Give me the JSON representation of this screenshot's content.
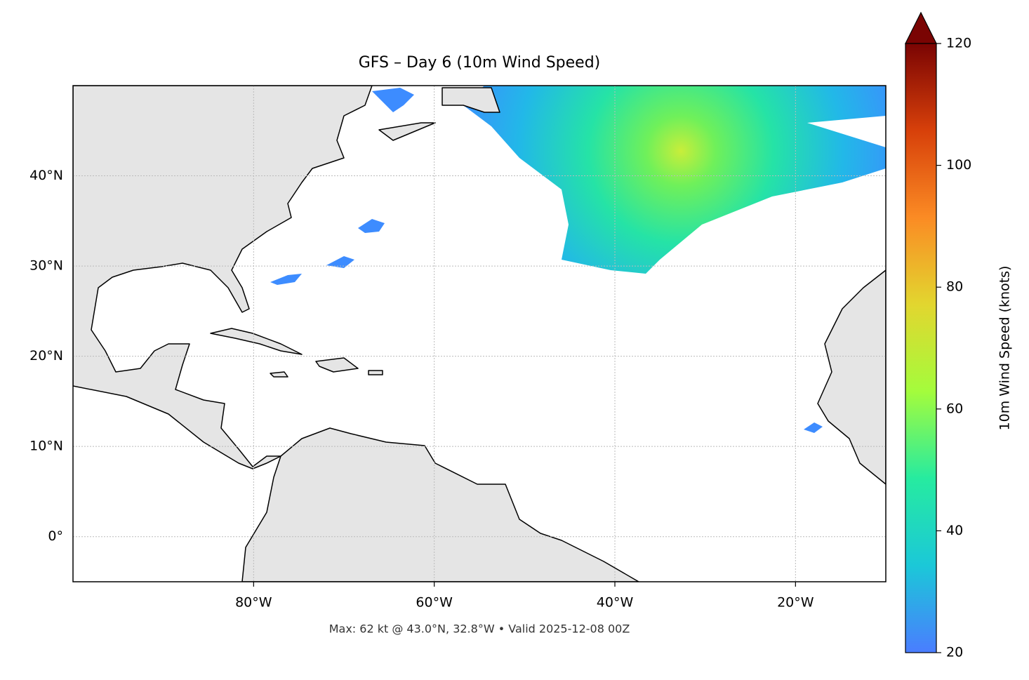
{
  "chart_data": {
    "type": "map",
    "title": "GFS – Day 6 (10m Wind Speed)",
    "annotation": "Max: 62 kt @ 43.0°N, 32.8°W • Valid 2025-12-08 00Z",
    "xlim": [
      -100,
      -10
    ],
    "ylim": [
      -5,
      50
    ],
    "xticks": [
      {
        "value": -80,
        "label": "80°W"
      },
      {
        "value": -60,
        "label": "60°W"
      },
      {
        "value": -40,
        "label": "40°W"
      },
      {
        "value": -20,
        "label": "20°W"
      }
    ],
    "yticks": [
      {
        "value": 0,
        "label": "0°"
      },
      {
        "value": 10,
        "label": "10°N"
      },
      {
        "value": 20,
        "label": "20°N"
      },
      {
        "value": 30,
        "label": "30°N"
      },
      {
        "value": 40,
        "label": "40°N"
      }
    ],
    "grid": true,
    "colorbar": {
      "label": "10m Wind Speed (knots)",
      "lim": [
        20,
        120
      ],
      "ticks": [
        20,
        40,
        60,
        80,
        100,
        120
      ],
      "colors": [
        "#4a7dff",
        "#1bc8d8",
        "#26eba0",
        "#a4fc3c",
        "#e2d62f",
        "#fb8b24",
        "#d7400a",
        "#7a0403"
      ]
    }
  }
}
